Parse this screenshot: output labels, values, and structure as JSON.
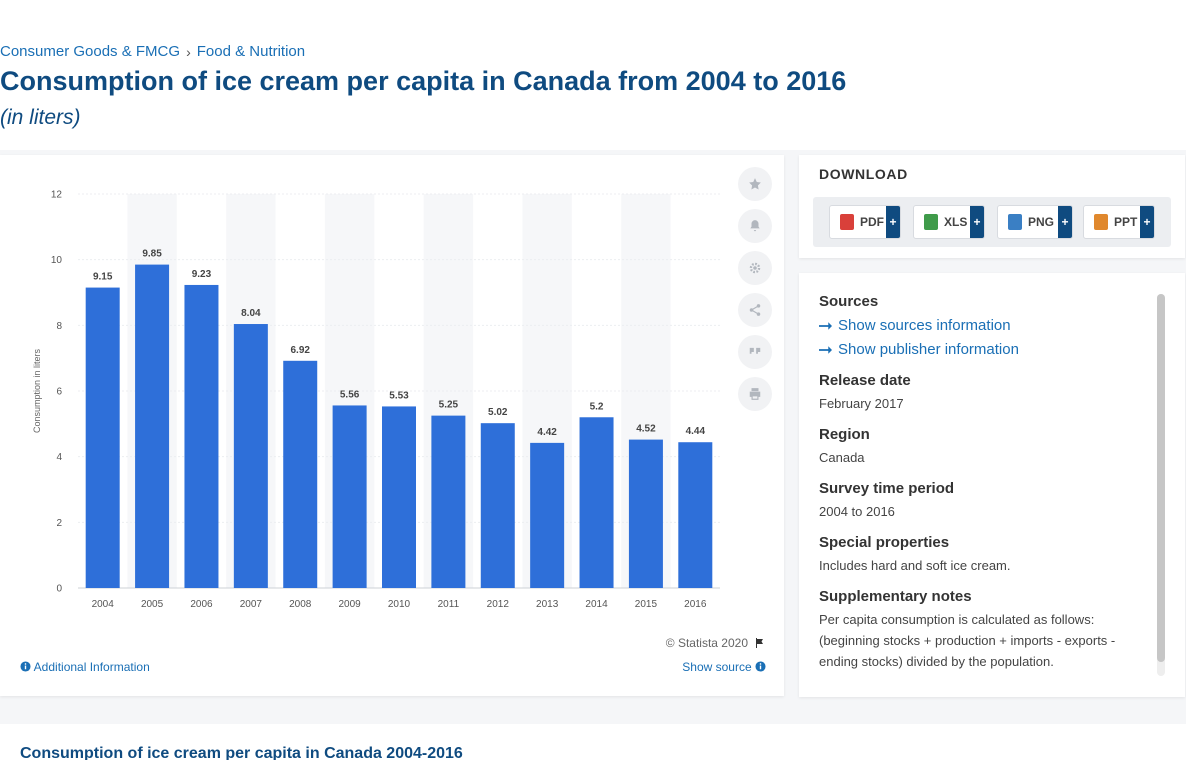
{
  "breadcrumb": {
    "items": [
      "Consumer Goods & FMCG",
      "Food & Nutrition"
    ],
    "separator": "›"
  },
  "page": {
    "title": "Consumption of ice cream per capita in Canada from 2004 to 2016",
    "subtitle": "(in liters)"
  },
  "chart_data": {
    "type": "bar",
    "categories": [
      "2004",
      "2005",
      "2006",
      "2007",
      "2008",
      "2009",
      "2010",
      "2011",
      "2012",
      "2013",
      "2014",
      "2015",
      "2016"
    ],
    "values": [
      9.15,
      9.85,
      9.23,
      8.04,
      6.92,
      5.56,
      5.53,
      5.25,
      5.02,
      4.42,
      5.2,
      4.52,
      4.44
    ],
    "value_labels": [
      "9.15",
      "9.85",
      "9.23",
      "8.04",
      "6.92",
      "5.56",
      "5.53",
      "5.25",
      "5.02",
      "4.42",
      "5.2",
      "4.52",
      "4.44"
    ],
    "yticks": [
      0,
      2,
      4,
      6,
      8,
      10,
      12
    ],
    "ylim": [
      0,
      12
    ],
    "xlabel": "",
    "ylabel": "Consumption in liters",
    "title": "",
    "bar_color": "#2e6fd9"
  },
  "chart_footer": {
    "copyright": "© Statista 2020",
    "additional_info": "Additional Information",
    "show_source": "Show source"
  },
  "side_actions": [
    "star-icon",
    "bell-icon",
    "gear-icon",
    "share-icon",
    "quote-icon",
    "print-icon"
  ],
  "download": {
    "title": "DOWNLOAD",
    "buttons": [
      {
        "label": "PDF",
        "color": "#d9403a"
      },
      {
        "label": "XLS",
        "color": "#3f9b4a"
      },
      {
        "label": "PNG",
        "color": "#3a7fc4"
      },
      {
        "label": "PPT",
        "color": "#e0882d"
      }
    ],
    "plus": "+"
  },
  "info": {
    "sources_heading": "Sources",
    "show_sources": "Show sources information",
    "show_publisher": "Show publisher information",
    "release_heading": "Release date",
    "release_value": "February 2017",
    "region_heading": "Region",
    "region_value": "Canada",
    "survey_heading": "Survey time period",
    "survey_value": "2004 to 2016",
    "special_heading": "Special properties",
    "special_value": "Includes hard and soft ice cream.",
    "supp_heading": "Supplementary notes",
    "supp_value": "Per capita consumption is calculated as follows: (beginning stocks + production + imports - exports - ending stocks) divided by the population."
  },
  "bottom": {
    "title": "Consumption of ice cream per capita in Canada 2004-2016"
  },
  "colors": {
    "brand": "#0f4b80",
    "link": "#1a6fb5",
    "accent": "#2e6fd9"
  }
}
